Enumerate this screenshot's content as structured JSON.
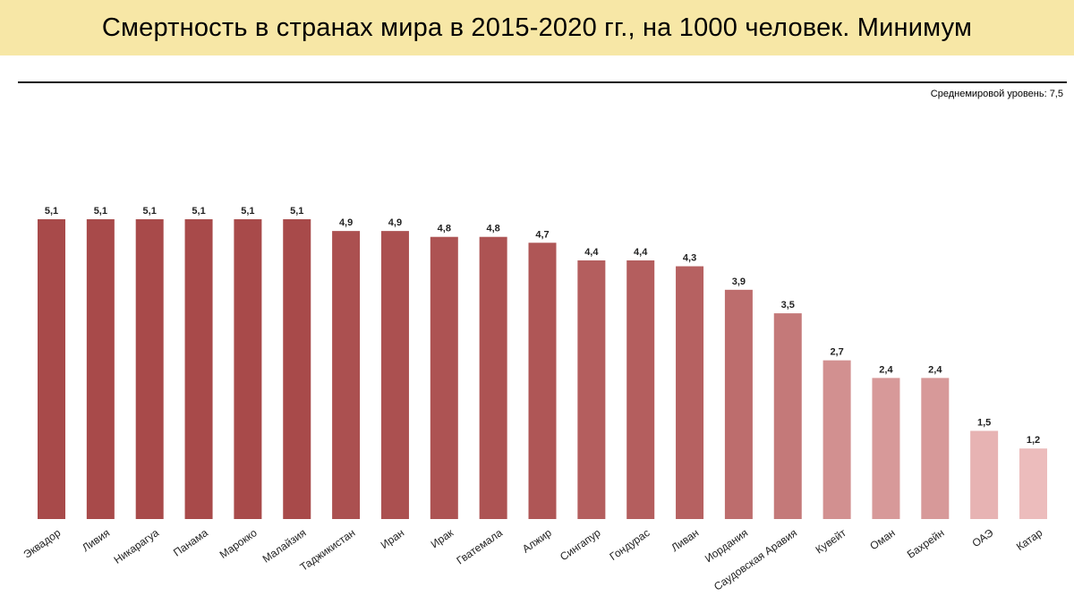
{
  "chart_data": {
    "type": "bar",
    "title": "Смертность в странах мира в 2015-2020 гг., на 1000 человек. Минимум",
    "annotation": "Среднемировой уровень: 7,5",
    "categories": [
      "Эквадор",
      "Ливия",
      "Никарагуа",
      "Панама",
      "Марокко",
      "Малайзия",
      "Таджикистан",
      "Иран",
      "Ирак",
      "Гватемала",
      "Алжир",
      "Сингапур",
      "Гондурас",
      "Ливан",
      "Иордания",
      "Саудовская Аравия",
      "Кувейт",
      "Оман",
      "Бахрейн",
      "ОАЭ",
      "Катар"
    ],
    "values": [
      5.1,
      5.1,
      5.1,
      5.1,
      5.1,
      5.1,
      4.9,
      4.9,
      4.8,
      4.8,
      4.7,
      4.4,
      4.4,
      4.3,
      3.9,
      3.5,
      2.7,
      2.4,
      2.4,
      1.5,
      1.2
    ],
    "value_labels": [
      "5,1",
      "5,1",
      "5,1",
      "5,1",
      "5,1",
      "5,1",
      "4,9",
      "4,9",
      "4,8",
      "4,8",
      "4,7",
      "4,4",
      "4,4",
      "4,3",
      "3,9",
      "3,5",
      "2,7",
      "2,4",
      "2,4",
      "1,5",
      "1,2"
    ],
    "ylim": [
      0,
      5.2
    ],
    "grid": false,
    "legend": "none",
    "xlabel": "",
    "ylabel": "",
    "colors": {
      "high": "#a84a4a",
      "low": "#ecbcbc"
    }
  }
}
